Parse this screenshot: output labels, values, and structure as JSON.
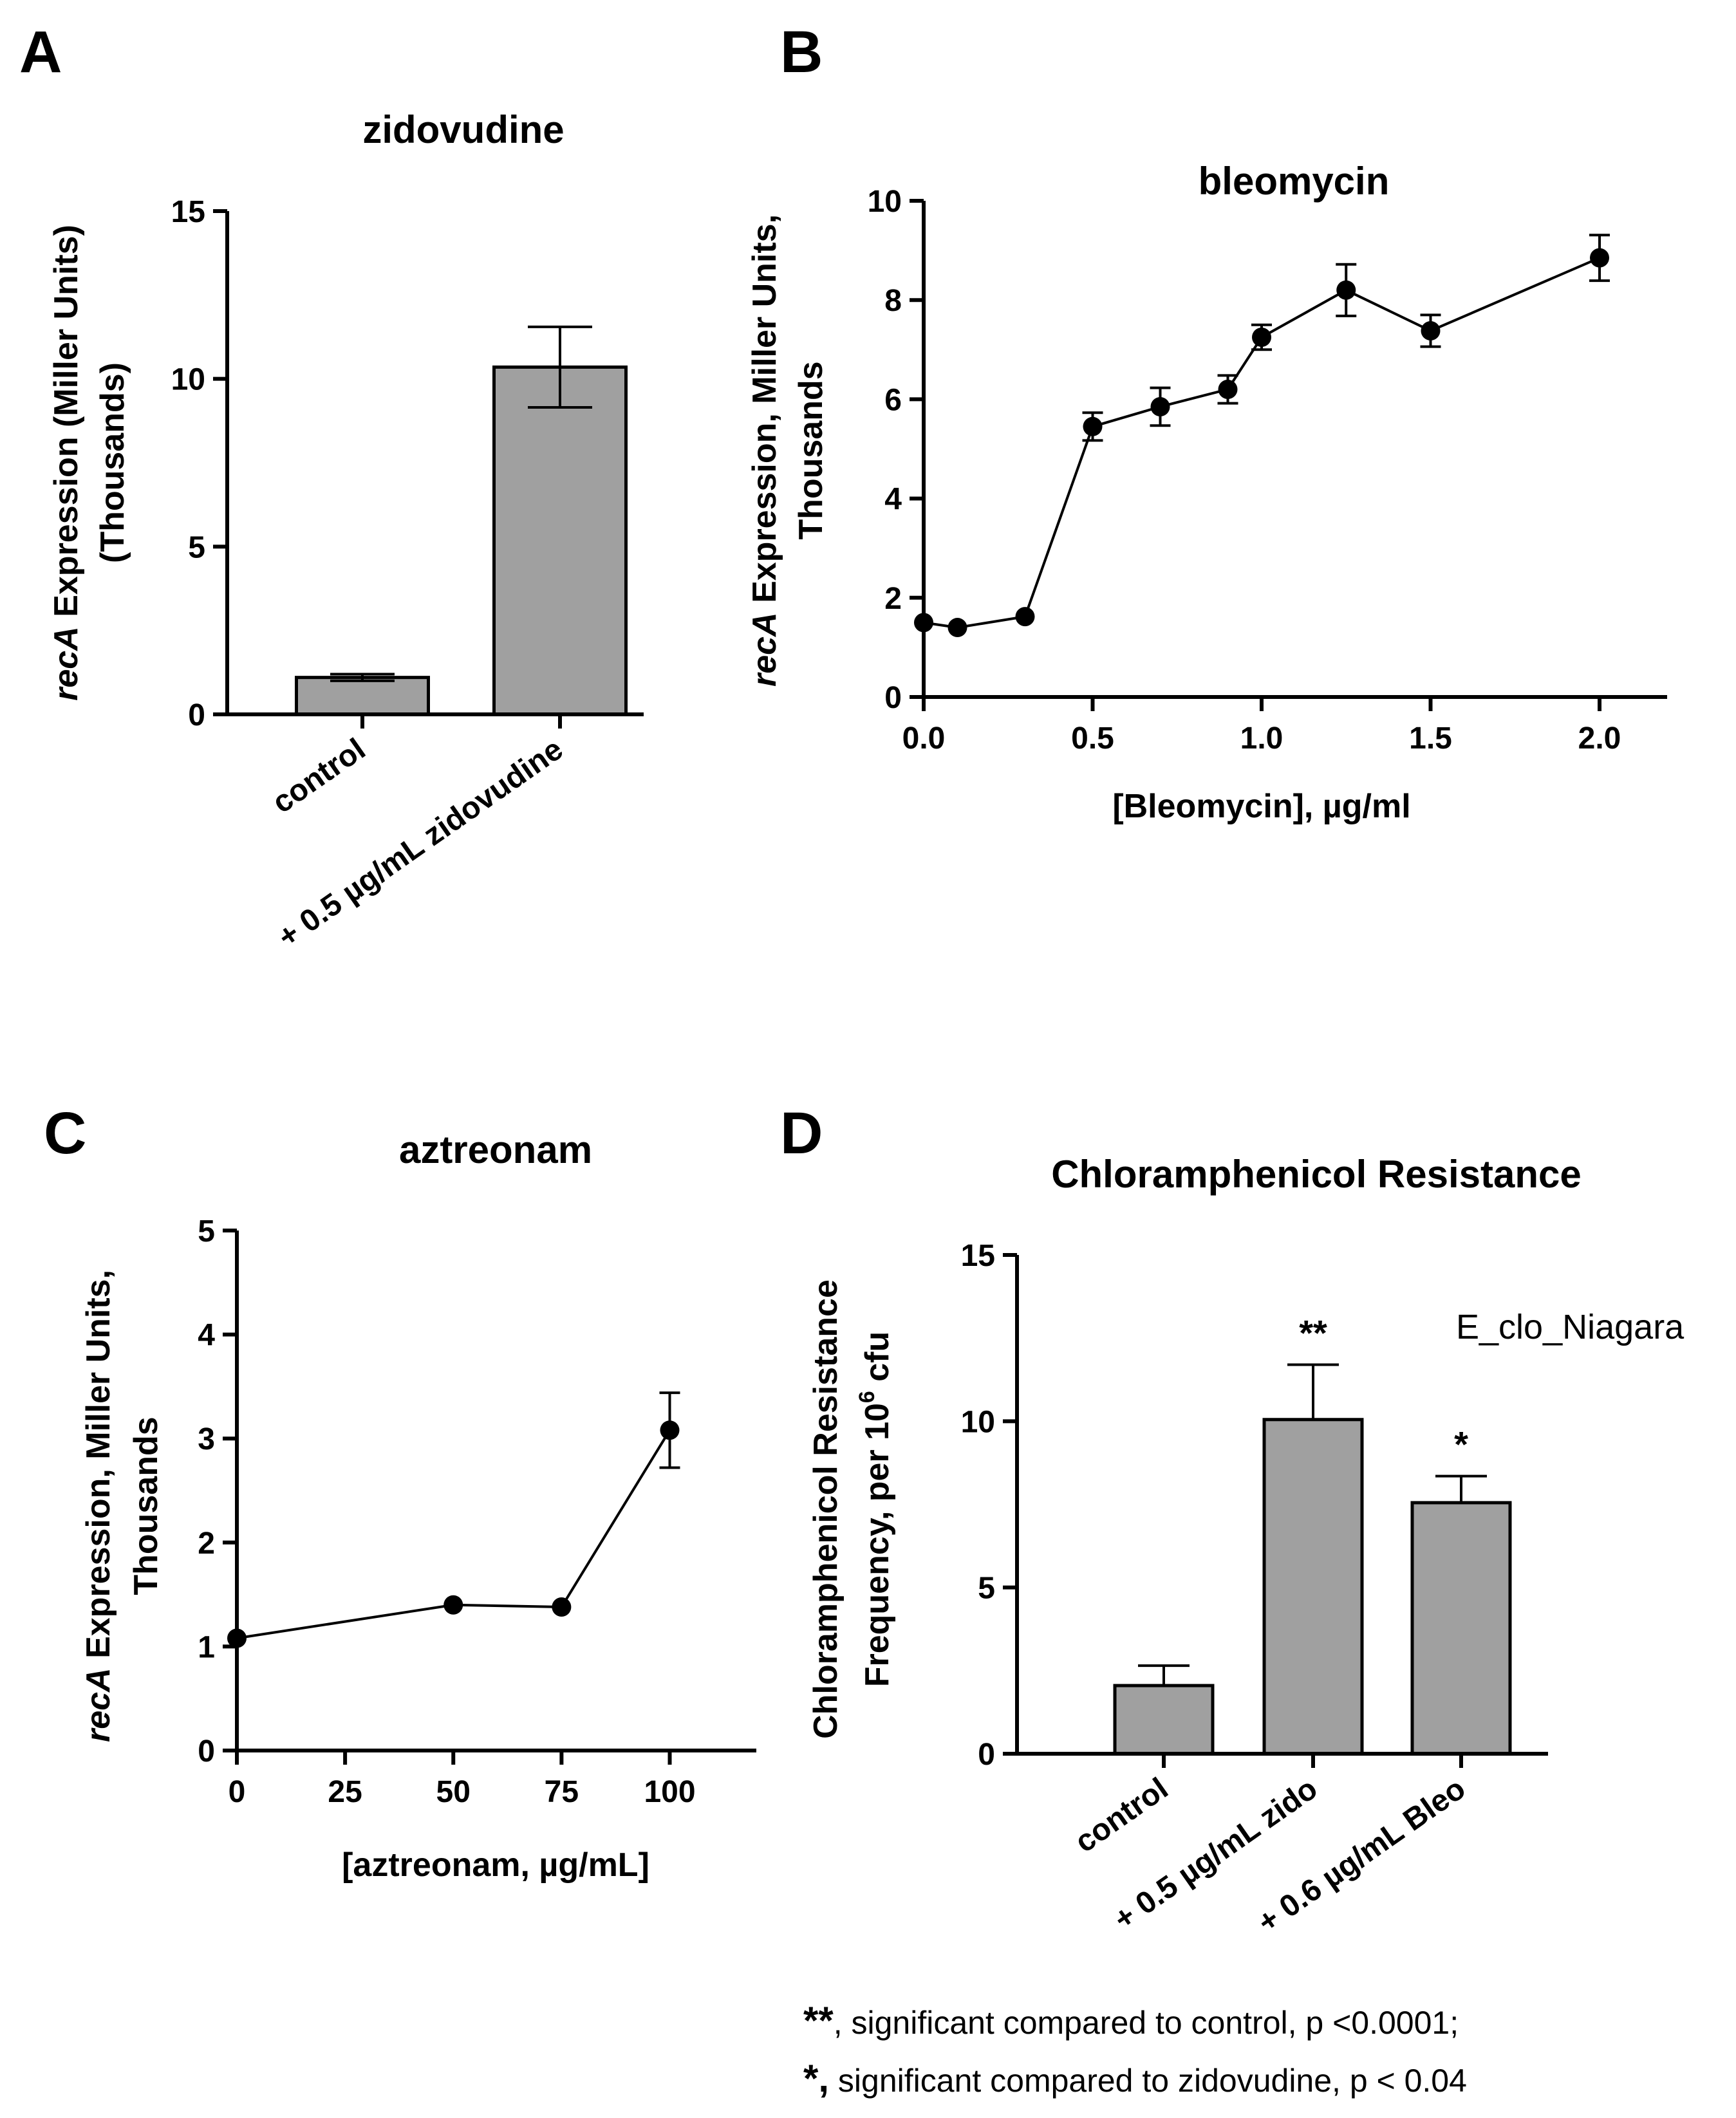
{
  "chart_data": [
    {
      "panel": "A",
      "type": "bar",
      "title": "zidovudine",
      "ylabel_italic": "recA",
      "ylabel_rest": " Expression (Miller Units)",
      "ylabel_line2": "(Thousands)",
      "xlabel": "",
      "categories": [
        "control",
        "+ 0.5 µg/mL zidovudine"
      ],
      "values": [
        1.1,
        10.35
      ],
      "errors": [
        0.1,
        1.2
      ],
      "ylim": [
        0,
        15
      ],
      "yticks": [
        0,
        5,
        10,
        15
      ],
      "ytick_labels": [
        "0",
        "5",
        "10",
        "15"
      ]
    },
    {
      "panel": "B",
      "type": "line",
      "title": "bleomycin",
      "ylabel_italic": "recA",
      "ylabel_rest": " Expression, Miller Units,",
      "ylabel_line2": "Thousands",
      "xlabel": "[Bleomycin], µg/ml",
      "x": [
        0.0,
        0.1,
        0.3,
        0.5,
        0.7,
        0.9,
        1.0,
        1.25,
        1.5,
        2.0
      ],
      "y": [
        1.5,
        1.4,
        1.62,
        5.45,
        5.85,
        6.2,
        7.25,
        8.2,
        7.38,
        8.85
      ],
      "errors": [
        0.0,
        0.0,
        0.0,
        0.28,
        0.38,
        0.28,
        0.25,
        0.52,
        0.32,
        0.46
      ],
      "xlim": [
        0,
        2.2
      ],
      "ylim": [
        0,
        10
      ],
      "xticks": [
        0.0,
        0.5,
        1.0,
        1.5,
        2.0
      ],
      "xtick_labels": [
        "0.0",
        "0.5",
        "1.0",
        "1.5",
        "2.0"
      ],
      "yticks": [
        0,
        2,
        4,
        6,
        8,
        10
      ],
      "ytick_labels": [
        "0",
        "2",
        "4",
        "6",
        "8",
        "10"
      ]
    },
    {
      "panel": "C",
      "type": "line",
      "title": "aztreonam",
      "ylabel_italic": "recA",
      "ylabel_rest": " Expression, Miller Units,",
      "ylabel_line2": "Thousands",
      "xlabel": "[aztreonam, µg/mL]",
      "x": [
        0,
        50,
        75,
        100
      ],
      "y": [
        1.08,
        1.4,
        1.38,
        3.08
      ],
      "errors": [
        0.0,
        0.0,
        0.0,
        0.36
      ],
      "xlim": [
        0,
        120
      ],
      "ylim": [
        0,
        5
      ],
      "xticks": [
        0,
        25,
        50,
        75,
        100
      ],
      "xtick_labels": [
        "0",
        "25",
        "50",
        "75",
        "100"
      ],
      "yticks": [
        0,
        1,
        2,
        3,
        4,
        5
      ],
      "ytick_labels": [
        "0",
        "1",
        "2",
        "3",
        "4",
        "5"
      ]
    },
    {
      "panel": "D",
      "type": "bar",
      "title": "Chloramphenicol Resistance",
      "ylabel": "Chloramphenicol Resistance",
      "ylabel_line2_pre": "Frequency, per 10",
      "ylabel_line2_sup": "6",
      "ylabel_line2_post": " cfu",
      "categories": [
        "control",
        "+ 0.5 µg/mL zido",
        "+ 0.6 µg/mL Bleo"
      ],
      "values": [
        2.05,
        10.05,
        7.55
      ],
      "errors": [
        0.6,
        1.65,
        0.8
      ],
      "significance": [
        "",
        "**",
        "*"
      ],
      "legend_label": "E_clo_Niagara",
      "ylim": [
        0,
        15
      ],
      "yticks": [
        0,
        5,
        10,
        15
      ],
      "ytick_labels": [
        "0",
        "5",
        "10",
        "15"
      ]
    }
  ],
  "panel_labels": [
    "A",
    "B",
    "C",
    "D"
  ],
  "footnotes": [
    {
      "mark": "**",
      "text": ", significant compared to control, p <0.0001;"
    },
    {
      "mark": "*,",
      "text": " significant compared to zidovudine, p < 0.04"
    }
  ]
}
